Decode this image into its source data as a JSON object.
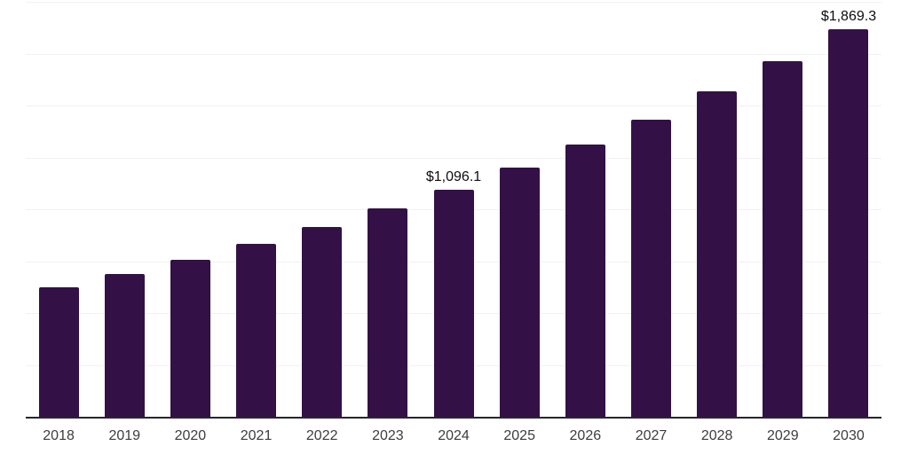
{
  "chart_data": {
    "type": "bar",
    "categories": [
      "2018",
      "2019",
      "2020",
      "2021",
      "2022",
      "2023",
      "2024",
      "2025",
      "2026",
      "2027",
      "2028",
      "2029",
      "2030"
    ],
    "values": [
      624,
      689,
      756,
      833,
      915,
      1004,
      1096.1,
      1201,
      1312,
      1432,
      1568,
      1714,
      1869.3
    ],
    "data_labels": [
      "",
      "",
      "",
      "",
      "",
      "",
      "$1,096.1",
      "",
      "",
      "",
      "",
      "",
      "$1,869.3"
    ],
    "ylim": [
      0,
      2000
    ],
    "grid_step": 250,
    "grid_visible": true,
    "legend_position": "none",
    "bar_color": "#331147",
    "gridline_color": "#f1f1f1",
    "axis_color": "#26262b",
    "value_label_color": "#0d0d0d",
    "tick_label_color": "#3d3d3d"
  }
}
